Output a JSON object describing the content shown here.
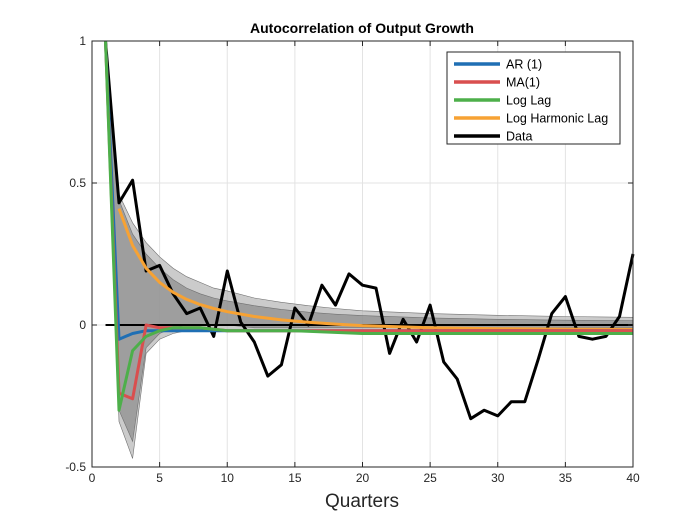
{
  "chart_data": {
    "type": "line",
    "title": "Autocorrelation of Output Growth",
    "xlabel": "Quarters",
    "ylabel": "",
    "xlim": [
      0,
      40
    ],
    "ylim": [
      -0.5,
      1
    ],
    "xticks": [
      "0",
      "5",
      "10",
      "15",
      "20",
      "25",
      "30",
      "35",
      "40"
    ],
    "yticks": [
      "-0.5",
      "0",
      "0.5",
      "1"
    ],
    "xtick_values": [
      0,
      5,
      10,
      15,
      20,
      25,
      30,
      35,
      40
    ],
    "ytick_values": [
      -0.5,
      0,
      0.5,
      1
    ],
    "grid": true,
    "legend_position": "top-right",
    "zero_line": {
      "x": [
        1,
        40
      ],
      "y": 0,
      "color": "#000000"
    },
    "bands": [
      {
        "color": "#b5b5b5",
        "x": [
          1,
          2,
          3,
          4,
          5,
          6,
          7,
          8,
          9,
          10,
          12,
          14,
          16,
          18,
          20,
          25,
          30,
          35,
          40
        ],
        "upper": [
          1.0,
          0.46,
          0.36,
          0.29,
          0.24,
          0.2,
          0.17,
          0.15,
          0.13,
          0.12,
          0.095,
          0.08,
          0.068,
          0.058,
          0.05,
          0.04,
          0.034,
          0.03,
          0.027
        ],
        "lower": [
          1.0,
          -0.34,
          -0.47,
          -0.1,
          -0.05,
          -0.03,
          -0.02,
          -0.02,
          -0.02,
          -0.02,
          -0.02,
          -0.02,
          -0.02,
          -0.02,
          -0.02,
          -0.02,
          -0.02,
          -0.02,
          -0.02
        ]
      },
      {
        "color": "#8a8a8a",
        "x": [
          1,
          2,
          3,
          4,
          5,
          6,
          7,
          8,
          9,
          10,
          12,
          14,
          16,
          18,
          20,
          25,
          30,
          35,
          40
        ],
        "upper": [
          1.0,
          0.44,
          0.32,
          0.25,
          0.2,
          0.16,
          0.13,
          0.11,
          0.095,
          0.085,
          0.068,
          0.055,
          0.045,
          0.038,
          0.033,
          0.025,
          0.02,
          0.017,
          0.015
        ],
        "lower": [
          1.0,
          -0.3,
          -0.41,
          -0.08,
          -0.03,
          -0.01,
          0.0,
          0.0,
          0.0,
          0.0,
          -0.01,
          -0.01,
          -0.01,
          -0.01,
          -0.01,
          -0.01,
          -0.01,
          -0.01,
          -0.01
        ]
      }
    ],
    "series": [
      {
        "name": "AR (1)",
        "color": "#1f6fb4",
        "x": [
          1,
          2,
          3,
          4,
          5,
          6,
          8,
          10,
          15,
          20,
          25,
          30,
          35,
          40
        ],
        "y": [
          1.0,
          -0.05,
          -0.03,
          -0.02,
          -0.02,
          -0.02,
          -0.02,
          -0.02,
          -0.02,
          -0.02,
          -0.02,
          -0.02,
          -0.02,
          -0.02
        ]
      },
      {
        "name": "MA(1)",
        "color": "#d94f4f",
        "x": [
          1,
          2,
          3,
          4,
          5,
          6,
          8,
          10,
          15,
          20,
          25,
          30,
          35,
          40
        ],
        "y": [
          1.0,
          -0.24,
          -0.26,
          0.0,
          -0.01,
          -0.01,
          -0.01,
          -0.02,
          -0.02,
          -0.02,
          -0.02,
          -0.02,
          -0.02,
          -0.02
        ]
      },
      {
        "name": "Log Lag",
        "color": "#4daf4a",
        "x": [
          1,
          2,
          3,
          4,
          5,
          6,
          7,
          8,
          10,
          15,
          20,
          25,
          30,
          35,
          40
        ],
        "y": [
          1.0,
          -0.3,
          -0.09,
          -0.04,
          -0.02,
          -0.01,
          -0.01,
          -0.01,
          -0.02,
          -0.02,
          -0.03,
          -0.03,
          -0.03,
          -0.03,
          -0.03
        ]
      },
      {
        "name": "Log Harmonic Lag",
        "color": "#f7a233",
        "x": [
          2,
          3,
          4,
          5,
          6,
          7,
          8,
          9,
          10,
          12,
          14,
          16,
          18,
          20,
          25,
          30,
          35,
          40
        ],
        "y": [
          0.41,
          0.28,
          0.2,
          0.15,
          0.115,
          0.09,
          0.072,
          0.058,
          0.047,
          0.03,
          0.018,
          0.01,
          0.003,
          -0.002,
          -0.01,
          -0.013,
          -0.015,
          -0.016
        ]
      },
      {
        "name": "Data",
        "color": "#000000",
        "x": [
          1,
          2,
          3,
          4,
          5,
          6,
          7,
          8,
          9,
          10,
          11,
          12,
          13,
          14,
          15,
          16,
          17,
          18,
          19,
          20,
          21,
          22,
          23,
          24,
          25,
          26,
          27,
          28,
          29,
          30,
          31,
          32,
          33,
          34,
          35,
          36,
          37,
          38,
          39,
          40
        ],
        "y": [
          1.0,
          0.43,
          0.51,
          0.19,
          0.21,
          0.11,
          0.04,
          0.06,
          -0.04,
          0.19,
          0.01,
          -0.06,
          -0.18,
          -0.14,
          0.06,
          0.0,
          0.14,
          0.07,
          0.18,
          0.14,
          0.13,
          -0.1,
          0.02,
          -0.06,
          0.07,
          -0.13,
          -0.19,
          -0.33,
          -0.3,
          -0.32,
          -0.27,
          -0.27,
          -0.12,
          0.04,
          0.1,
          -0.04,
          -0.05,
          -0.04,
          0.03,
          0.25
        ]
      }
    ]
  }
}
